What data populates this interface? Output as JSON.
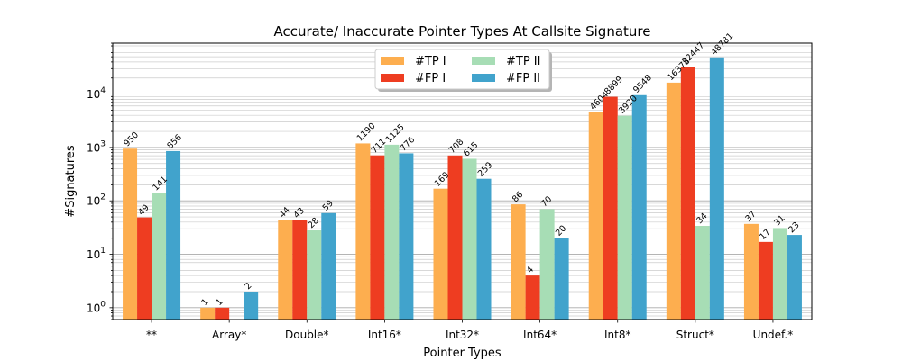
{
  "chart_data": {
    "type": "bar",
    "title": "Accurate/ Inaccurate Pointer Types At Callsite Signature",
    "xlabel": "Pointer Types",
    "ylabel": "#Signatures",
    "yscale": "log",
    "ylim": [
      0.6,
      90000
    ],
    "grid": "horizontal major and minor",
    "legend_position": "top-center",
    "categories": [
      "**",
      "Array*",
      "Double*",
      "Int16*",
      "Int32*",
      "Int64*",
      "Int8*",
      "Struct*",
      "Undef.*"
    ],
    "y_ticks": [
      {
        "value": 1,
        "base": "10",
        "exp": "0"
      },
      {
        "value": 10,
        "base": "10",
        "exp": "1"
      },
      {
        "value": 100,
        "base": "10",
        "exp": "2"
      },
      {
        "value": 1000,
        "base": "10",
        "exp": "3"
      },
      {
        "value": 10000,
        "base": "10",
        "exp": "4"
      }
    ],
    "series": [
      {
        "name": "#TP I",
        "color": "#FDAE4F",
        "values": [
          950,
          1,
          44,
          1190,
          169,
          86,
          4604,
          16378,
          37
        ]
      },
      {
        "name": "#FP I",
        "color": "#EE3D21",
        "values": [
          49,
          1,
          43,
          711,
          708,
          4,
          8899,
          32447,
          17
        ]
      },
      {
        "name": "#TP II",
        "color": "#A7DDB5",
        "values": [
          141,
          0,
          28,
          1125,
          615,
          70,
          3920,
          34,
          31
        ]
      },
      {
        "name": "#FP II",
        "color": "#41A3CC",
        "values": [
          856,
          2,
          59,
          776,
          259,
          20,
          9548,
          48781,
          23
        ]
      }
    ]
  }
}
